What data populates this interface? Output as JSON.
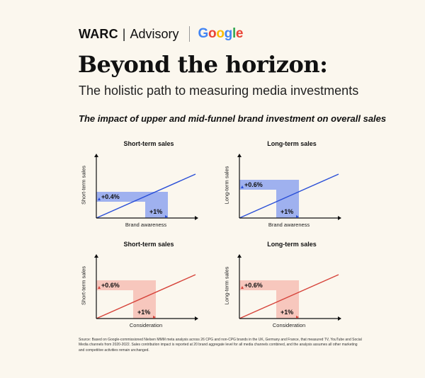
{
  "brand": {
    "warc": "WARC",
    "separator": "|",
    "advisory": "Advisory",
    "google": [
      "G",
      "o",
      "o",
      "g",
      "l",
      "e"
    ]
  },
  "title": "Beyond the horizon:",
  "subtitle": "The holistic path to measuring media investments",
  "impact_heading": "The impact of upper and mid-funnel brand investment on overall sales",
  "colors": {
    "blue_line": "#2a4fd7",
    "blue_fill": "#9fb1ef",
    "red_line": "#d6433a",
    "red_fill": "#f7c7bd",
    "google_blue": "#4285f4",
    "google_red": "#ea4335",
    "google_yellow": "#fbbc05",
    "google_green": "#34a853"
  },
  "chart_data": [
    {
      "type": "line",
      "title": "Short-term sales",
      "xlabel": "Brand awareness",
      "ylabel": "Short-term sales",
      "x_change": "+1%",
      "y_change": "+0.4%",
      "color_line": "#2a4fd7",
      "color_fill": "#9fb1ef",
      "x": [
        0,
        1
      ],
      "y": [
        0,
        0.4
      ],
      "x_highlight": 1,
      "y_highlight": 0.4
    },
    {
      "type": "line",
      "title": "Long-term sales",
      "xlabel": "Brand awareness",
      "ylabel": "Long-term sales",
      "x_change": "+1%",
      "y_change": "+0.6%",
      "color_line": "#2a4fd7",
      "color_fill": "#9fb1ef",
      "x": [
        0,
        1
      ],
      "y": [
        0,
        0.6
      ],
      "x_highlight": 1,
      "y_highlight": 0.6
    },
    {
      "type": "line",
      "title": "Short-term sales",
      "xlabel": "Consideration",
      "ylabel": "Short-term sales",
      "x_change": "+1%",
      "y_change": "+0.6%",
      "color_line": "#d6433a",
      "color_fill": "#f7c7bd",
      "x": [
        0,
        1
      ],
      "y": [
        0,
        0.6
      ],
      "x_highlight": 1,
      "y_highlight": 0.6
    },
    {
      "type": "line",
      "title": "Long-term sales",
      "xlabel": "Consideration",
      "ylabel": "Long-term sales",
      "x_change": "+1%",
      "y_change": "+0.6%",
      "color_line": "#d6433a",
      "color_fill": "#f7c7bd",
      "x": [
        0,
        1
      ],
      "y": [
        0,
        0.6
      ],
      "x_highlight": 1,
      "y_highlight": 0.6
    }
  ],
  "source": "Source: Based on Google-commissioned Nielsen MMM meta analysis across 26 CPG and non-CPG brands in the UK, Germany and France, that measured TV, YouTube and Social Media channels from 2020-2022. Sales contribution impact is reported at 20 brand aggregate level for all media channels combined, and the analysis assumes all other marketing and competitive activities remain unchanged."
}
